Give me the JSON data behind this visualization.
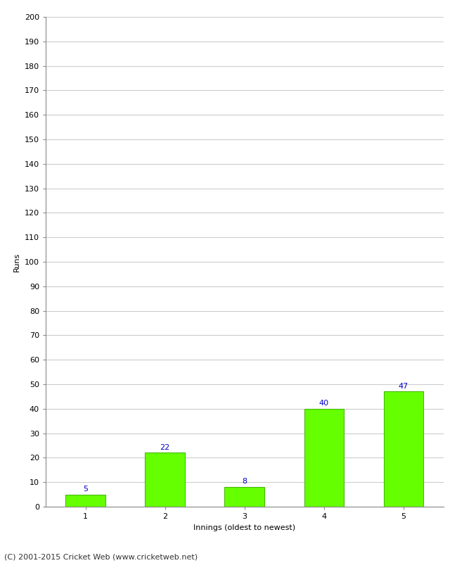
{
  "categories": [
    "1",
    "2",
    "3",
    "4",
    "5"
  ],
  "values": [
    5,
    22,
    8,
    40,
    47
  ],
  "bar_color": "#66ff00",
  "bar_edge_color": "#44bb00",
  "label_color": "#0000cc",
  "xlabel": "Innings (oldest to newest)",
  "ylabel": "Runs",
  "ylim": [
    0,
    200
  ],
  "ytick_step": 10,
  "title": "",
  "footer": "(C) 2001-2015 Cricket Web (www.cricketweb.net)",
  "background_color": "#ffffff",
  "grid_color": "#cccccc",
  "label_fontsize": 8,
  "axis_fontsize": 8,
  "footer_fontsize": 8,
  "bar_width": 0.5
}
